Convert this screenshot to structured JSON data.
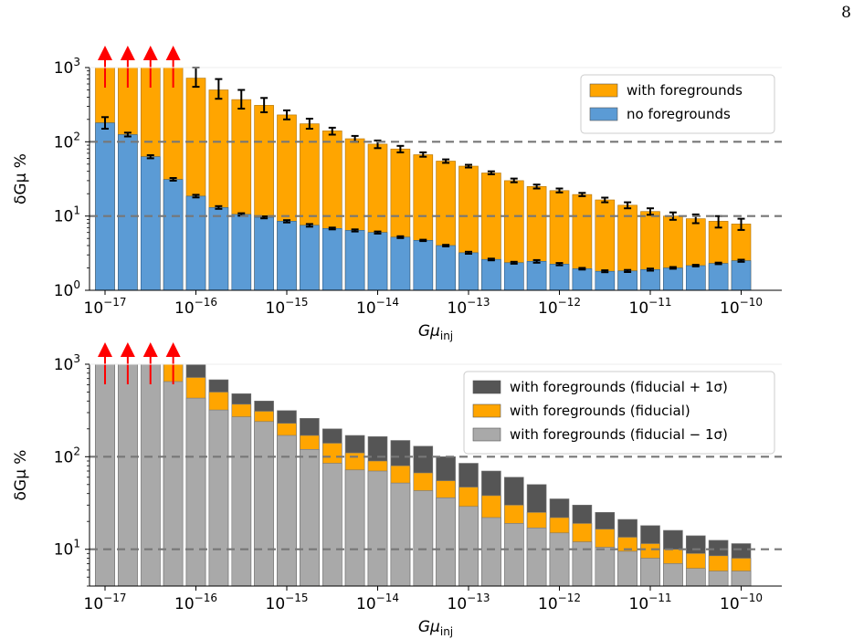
{
  "page_number": "8",
  "chart_data": [
    {
      "type": "bar",
      "ylabel": "δGμ %",
      "xlabel": "Gμ",
      "xlabel_sub": "inj",
      "yscale": "log",
      "ylim": [
        1,
        1000
      ],
      "y_ticks": [
        {
          "v": 1,
          "e": "0"
        },
        {
          "v": 10,
          "e": "1"
        },
        {
          "v": 100,
          "e": "2"
        },
        {
          "v": 1000,
          "e": "3"
        }
      ],
      "x_ticks": [
        {
          "exp": -17,
          "label": "−17"
        },
        {
          "exp": -16,
          "label": "−16"
        },
        {
          "exp": -15,
          "label": "−15"
        },
        {
          "exp": -14,
          "label": "−14"
        },
        {
          "exp": -13,
          "label": "−13"
        },
        {
          "exp": -12,
          "label": "−12"
        },
        {
          "exp": -11,
          "label": "−11"
        },
        {
          "exp": -10,
          "label": "−10"
        }
      ],
      "x_log10": [
        -17.0,
        -16.75,
        -16.5,
        -16.25,
        -16.0,
        -15.75,
        -15.5,
        -15.25,
        -15.0,
        -14.75,
        -14.5,
        -14.25,
        -14.0,
        -13.75,
        -13.5,
        -13.25,
        -13.0,
        -12.75,
        -12.5,
        -12.25,
        -12.0,
        -11.75,
        -11.5,
        -11.25,
        -11.0,
        -10.75,
        -10.5,
        -10.25,
        -10.0
      ],
      "hlines": [
        10,
        100
      ],
      "legend_position": "top-right",
      "series": [
        {
          "name": "with foregrounds",
          "color": "#ffa500",
          "values": [
            1000,
            1000,
            1000,
            1000,
            720,
            500,
            370,
            310,
            230,
            175,
            140,
            110,
            93,
            80,
            67,
            55,
            47,
            38,
            30,
            25,
            22,
            19.5,
            16.5,
            14,
            11.5,
            10,
            9.2,
            8.5,
            7.8
          ],
          "err_low": [
            null,
            null,
            null,
            null,
            550,
            380,
            280,
            250,
            200,
            150,
            125,
            100,
            82,
            72,
            63,
            52,
            45,
            36.5,
            28.5,
            23.5,
            20.8,
            18.5,
            15.3,
            12.7,
            10.4,
            8.9,
            8.0,
            7.0,
            6.5
          ],
          "err_high": [
            null,
            null,
            null,
            null,
            1000,
            700,
            500,
            390,
            265,
            205,
            155,
            120,
            104,
            88,
            72,
            58,
            49,
            40,
            32,
            26.5,
            23.5,
            20.5,
            17.7,
            15.3,
            12.7,
            11.2,
            10.5,
            10.0,
            9.2
          ],
          "lower_limit": [
            true,
            true,
            true,
            true,
            false,
            false,
            false,
            false,
            false,
            false,
            false,
            false,
            false,
            false,
            false,
            false,
            false,
            false,
            false,
            false,
            false,
            false,
            false,
            false,
            false,
            false,
            false,
            false,
            false
          ]
        },
        {
          "name": "no foregrounds",
          "color": "#5b9bd5",
          "values": [
            180,
            125,
            63,
            31,
            18.5,
            13,
            10.5,
            9.6,
            8.5,
            7.5,
            6.8,
            6.4,
            6.0,
            5.2,
            4.7,
            4.0,
            3.2,
            2.6,
            2.35,
            2.45,
            2.25,
            1.95,
            1.8,
            1.82,
            1.9,
            2.0,
            2.15,
            2.3,
            2.5
          ],
          "err_low": [
            150,
            118,
            60,
            30,
            17.8,
            12.5,
            10.1,
            9.3,
            8.2,
            7.2,
            6.6,
            6.2,
            5.8,
            5.05,
            4.6,
            3.9,
            3.1,
            2.53,
            2.28,
            2.35,
            2.17,
            1.9,
            1.75,
            1.76,
            1.84,
            1.95,
            2.1,
            2.25,
            2.42
          ],
          "err_high": [
            215,
            133,
            66,
            32.5,
            19.3,
            13.6,
            10.9,
            9.9,
            8.8,
            7.8,
            7.0,
            6.6,
            6.2,
            5.35,
            4.8,
            4.1,
            3.3,
            2.67,
            2.42,
            2.55,
            2.33,
            2.0,
            1.86,
            1.88,
            1.96,
            2.06,
            2.2,
            2.36,
            2.58
          ]
        }
      ]
    },
    {
      "type": "bar",
      "ylabel": "δGμ %",
      "xlabel": "Gμ",
      "xlabel_sub": "inj",
      "yscale": "log",
      "ylim": [
        4,
        1000
      ],
      "y_ticks": [
        {
          "v": 10,
          "e": "1"
        },
        {
          "v": 100,
          "e": "2"
        },
        {
          "v": 1000,
          "e": "3"
        }
      ],
      "x_ticks": [
        {
          "exp": -17,
          "label": "−17"
        },
        {
          "exp": -16,
          "label": "−16"
        },
        {
          "exp": -15,
          "label": "−15"
        },
        {
          "exp": -14,
          "label": "−14"
        },
        {
          "exp": -13,
          "label": "−13"
        },
        {
          "exp": -12,
          "label": "−12"
        },
        {
          "exp": -11,
          "label": "−11"
        },
        {
          "exp": -10,
          "label": "−10"
        }
      ],
      "x_log10": [
        -17.0,
        -16.75,
        -16.5,
        -16.25,
        -16.0,
        -15.75,
        -15.5,
        -15.25,
        -15.0,
        -14.75,
        -14.5,
        -14.25,
        -14.0,
        -13.75,
        -13.5,
        -13.25,
        -13.0,
        -12.75,
        -12.5,
        -12.25,
        -12.0,
        -11.75,
        -11.5,
        -11.25,
        -11.0,
        -10.75,
        -10.5,
        -10.25,
        -10.0
      ],
      "hlines": [
        10,
        100
      ],
      "legend_position": "top-right",
      "series": [
        {
          "name": "with foregrounds (fiducial + 1σ)",
          "color": "#555555",
          "values": [
            1000,
            1000,
            1000,
            1000,
            1000,
            680,
            480,
            400,
            315,
            260,
            200,
            170,
            165,
            150,
            130,
            100,
            85,
            70,
            60,
            50,
            35,
            30,
            25,
            21,
            18,
            16,
            14,
            12.5,
            11.5
          ]
        },
        {
          "name": "with foregrounds (fiducial)",
          "color": "#ffa500",
          "values": [
            1000,
            1000,
            1000,
            1000,
            720,
            500,
            370,
            310,
            230,
            170,
            140,
            110,
            90,
            80,
            67,
            55,
            47,
            38,
            30,
            25,
            22,
            19,
            16.5,
            13.5,
            11.5,
            10,
            9,
            8.5,
            8
          ]
        },
        {
          "name": "with foregrounds (fiducial − 1σ)",
          "color": "#a9a9a9",
          "values": [
            1000,
            1000,
            1000,
            650,
            430,
            320,
            270,
            240,
            170,
            120,
            85,
            72,
            70,
            52,
            43,
            36,
            29,
            22,
            19,
            17,
            15,
            12,
            10.5,
            9.5,
            8,
            7,
            6.2,
            5.8,
            5.8
          ]
        }
      ],
      "lower_limit": [
        true,
        true,
        true,
        true,
        false,
        false,
        false,
        false,
        false,
        false,
        false,
        false,
        false,
        false,
        false,
        false,
        false,
        false,
        false,
        false,
        false,
        false,
        false,
        false,
        false,
        false,
        false,
        false,
        false
      ]
    }
  ]
}
